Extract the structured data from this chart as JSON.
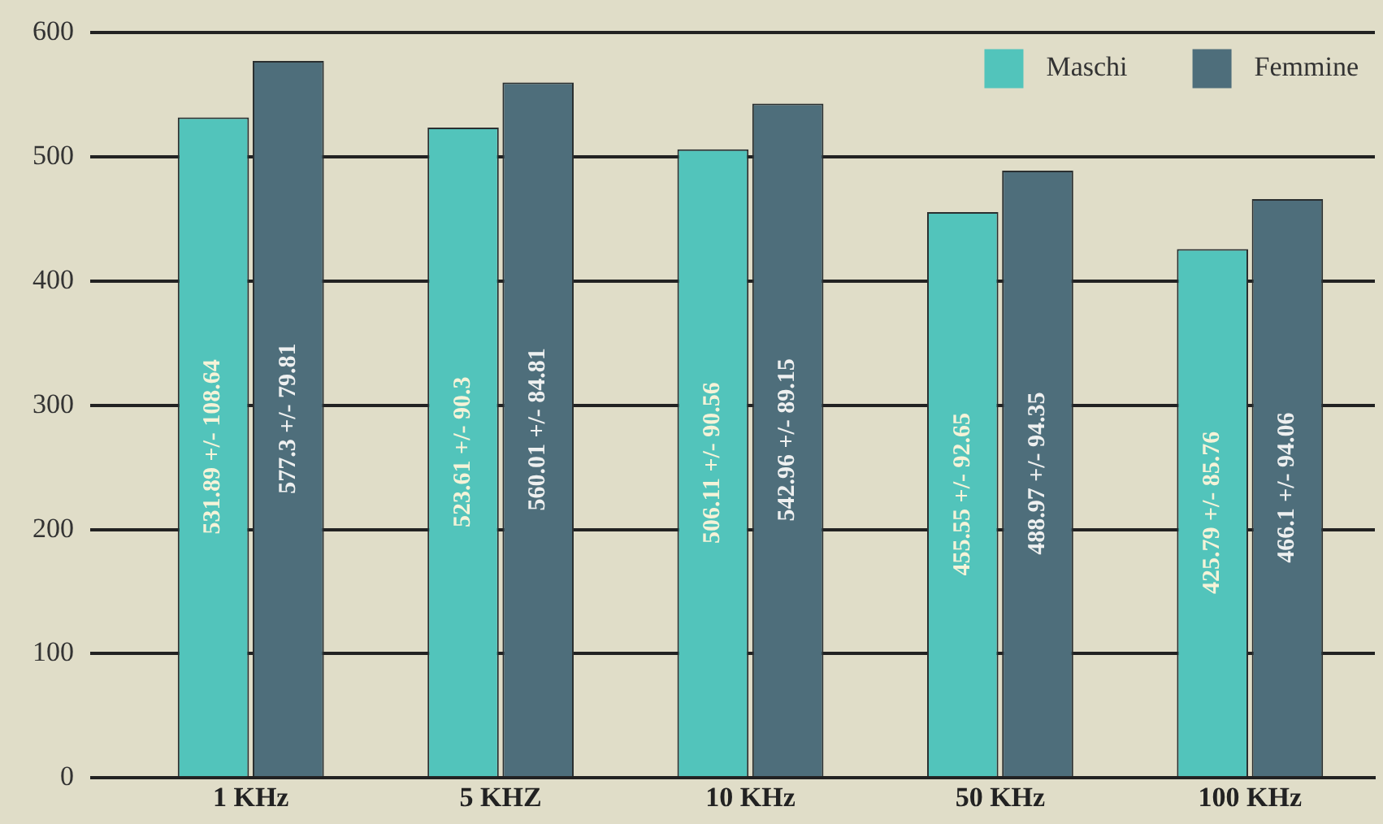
{
  "chart_data": {
    "type": "bar",
    "categories": [
      "1 KHz",
      "5 KHZ",
      "10 KHz",
      "50 KHz",
      "100 KHz"
    ],
    "series": [
      {
        "name": "Maschi",
        "color": "#52c4bb",
        "values": [
          531.89,
          523.61,
          506.11,
          455.55,
          425.79
        ],
        "value_labels": [
          "531.89 +/- 108.64",
          "523.61 +/- 90.3",
          "506.11 +/- 90.56",
          "455.55 +/- 92.65",
          "425.79 +/- 85.76"
        ]
      },
      {
        "name": "Femmine",
        "color": "#4e6e7b",
        "values": [
          577.3,
          560.01,
          542.96,
          488.97,
          466.1
        ],
        "value_labels": [
          "577.3 +/- 79.81",
          "560.01 +/- 84.81",
          "542.96 +/- 89.15",
          "488.97 +/- 94.35",
          "466.1 +/- 94.06"
        ]
      }
    ],
    "ylim": [
      0,
      600
    ],
    "yticks": [
      0,
      100,
      200,
      300,
      400,
      500,
      600
    ],
    "grid": "y",
    "legend": "top right"
  }
}
